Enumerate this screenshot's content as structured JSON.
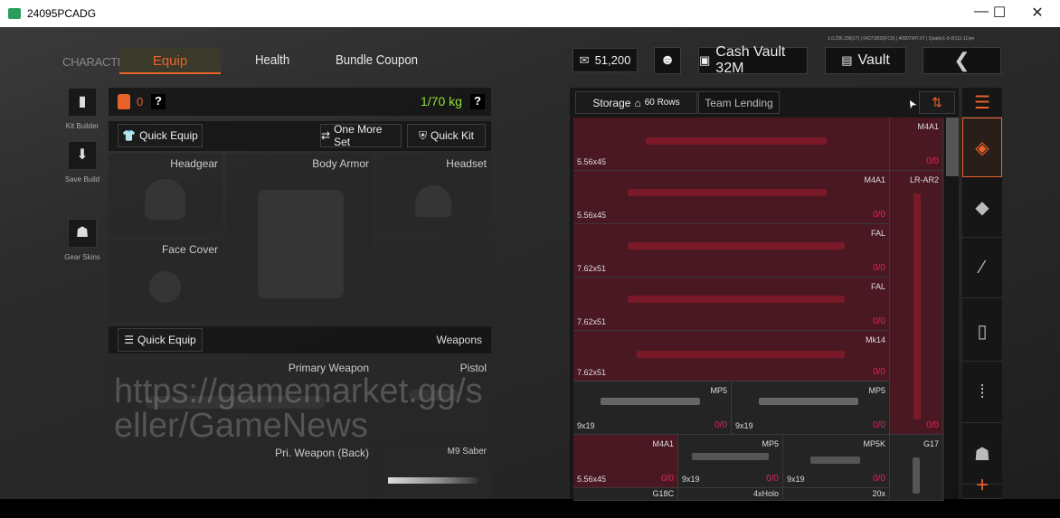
{
  "window": {
    "title": "24095PCADG",
    "minimize": "—",
    "maximize": "☐",
    "close": "✕"
  },
  "nav": {
    "section": "CHARACTER",
    "tabs": [
      {
        "label": "Equip",
        "active": true
      },
      {
        "label": "Health"
      },
      {
        "label": "Bundle Coupon"
      }
    ]
  },
  "header": {
    "version": "1.0.236.236(17) | 04271802(FC0) | 40907347.07 | Quality1-6-0(111-11)en",
    "money": "51,200",
    "cash_vault": "Cash Vault 32M",
    "vault": "Vault",
    "back": "❮"
  },
  "left_sidebar": [
    {
      "label": "Kit Builder",
      "icon": "vest-icon"
    },
    {
      "label": "Save Build",
      "icon": "download-icon"
    },
    {
      "label": "Gear Skins",
      "icon": "helmet-icon"
    }
  ],
  "equip": {
    "armor_count": "0",
    "help": "?",
    "weight": "1/70 kg",
    "quick_equip": "Quick Equip",
    "one_more_set": "One More Set",
    "quick_kit": "Quick Kit",
    "slots": [
      "Headgear",
      "Body Armor",
      "Headset",
      "Face Cover"
    ],
    "weapons_quick_equip": "Quick Equip",
    "weapons_label": "Weapons",
    "weapon_slots": [
      "Primary Weapon",
      "Pistol",
      "Pri. Weapon (Back)",
      "M9 Saber"
    ]
  },
  "storage": {
    "tab": "Storage",
    "rows": "60 Rows",
    "team_lending": "Team Lending",
    "items": [
      {
        "name": "",
        "ammo": "5.56x45",
        "count": ""
      },
      {
        "name": "M4A1",
        "ammo": "",
        "count": "0/0"
      },
      {
        "name": "M4A1",
        "ammo": "5.56x45",
        "count": "0/0"
      },
      {
        "name": "LR-AR2",
        "ammo": "",
        "count": "0/0"
      },
      {
        "name": "FAL",
        "ammo": "7.62x51",
        "count": "0/0"
      },
      {
        "name": "FAL",
        "ammo": "7.62x51",
        "count": "0/0"
      },
      {
        "name": "Mk14",
        "ammo": "7.62x51",
        "count": "0/0"
      },
      {
        "name": "MP5",
        "ammo": "9x19",
        "count": "0/0"
      },
      {
        "name": "MP5",
        "ammo": "9x19",
        "count": "0/0"
      },
      {
        "name": "M4A1",
        "ammo": "5.56x45",
        "count": "0/0"
      },
      {
        "name": "MP5",
        "ammo": "9x19",
        "count": "0/0"
      },
      {
        "name": "MP5K",
        "ammo": "9x19",
        "count": "0/0"
      },
      {
        "name": "G17",
        "ammo": "",
        "count": ""
      },
      {
        "name": "G18C",
        "ammo": "",
        "count": ""
      },
      {
        "name": "4xHolo",
        "ammo": "",
        "count": ""
      },
      {
        "name": "20x",
        "ammo": "",
        "count": ""
      }
    ]
  },
  "categories": [
    "all-icon",
    "backpack-icon",
    "armor-icon",
    "rifle-icon",
    "magazine-icon",
    "ammo-icon",
    "helmet-icon",
    "add-icon"
  ],
  "add": "+",
  "watermark": "https://gamemarket.gg/seller/GameNews",
  "colors": {
    "accent": "#e8622a",
    "weight": "#8fe03a",
    "count": "#e0245a",
    "item_highlight": "#4a1822"
  }
}
